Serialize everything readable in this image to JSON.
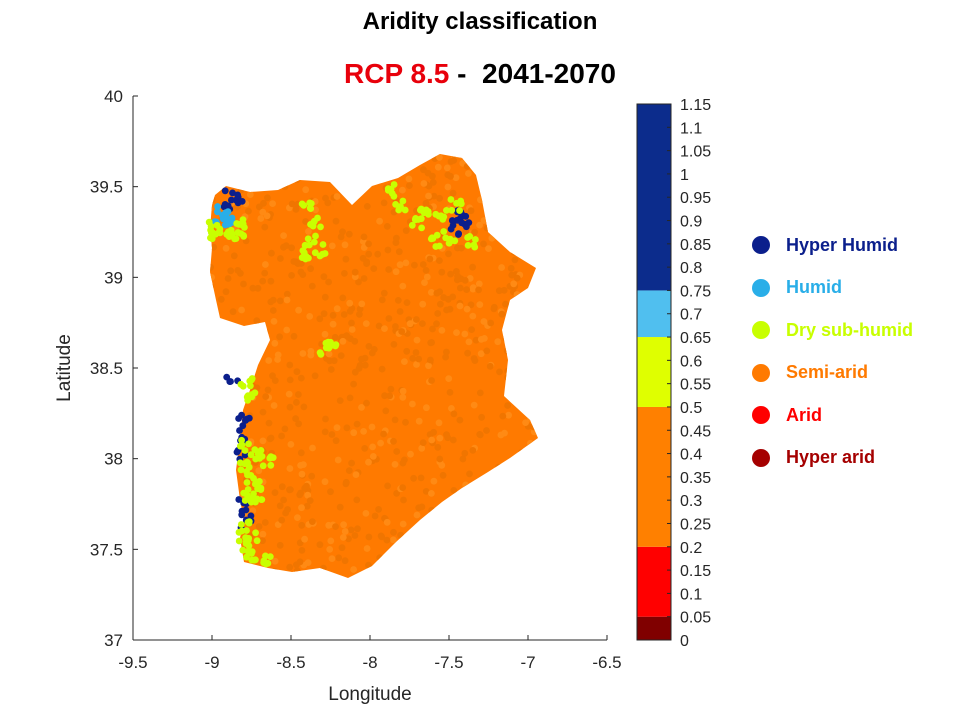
{
  "title": "Aridity classification",
  "subtitle": {
    "scenario": "RCP 8.5",
    "separator": " -  ",
    "period": "2041-2070",
    "scenario_color": "#e8000b",
    "period_color": "#000000"
  },
  "chart_data": {
    "type": "scatter",
    "title": "Aridity classification",
    "subtitle": "RCP 8.5 -  2041-2070",
    "xlabel": "Longitude",
    "ylabel": "Latitude",
    "xlim": [
      -9.5,
      -6.5
    ],
    "ylim": [
      37,
      40
    ],
    "xticks": [
      "-9.5",
      "-9",
      "-8.5",
      "-8",
      "-7.5",
      "-7",
      "-6.5"
    ],
    "yticks": [
      "37",
      "37.5",
      "38",
      "38.5",
      "39",
      "39.5",
      "40"
    ],
    "grid": false,
    "series": [
      {
        "name": "Hyper Humid",
        "color": "#0b1f8c",
        "points": [
          [
            -8.88,
            39.45
          ],
          [
            -8.84,
            39.44
          ],
          [
            -8.9,
            39.4
          ],
          [
            -7.45,
            39.33
          ],
          [
            -7.42,
            39.35
          ],
          [
            -7.4,
            39.3
          ],
          [
            -7.47,
            39.26
          ],
          [
            -8.87,
            38.45
          ],
          [
            -8.8,
            38.24
          ],
          [
            -8.79,
            38.18
          ],
          [
            -8.81,
            38.1
          ],
          [
            -8.8,
            37.75
          ],
          [
            -8.78,
            37.7
          ],
          [
            -8.79,
            37.64
          ],
          [
            -8.82,
            38.03
          ]
        ]
      },
      {
        "name": "Humid",
        "color": "#29aee8",
        "points": [
          [
            -8.93,
            39.37
          ],
          [
            -8.9,
            39.34
          ],
          [
            -8.95,
            39.33
          ],
          [
            -8.88,
            39.3
          ]
        ]
      },
      {
        "name": "Dry sub-humid",
        "color": "#c8ff00",
        "points": [
          [
            -8.98,
            39.28
          ],
          [
            -8.9,
            39.25
          ],
          [
            -8.82,
            39.3
          ],
          [
            -8.82,
            39.22
          ],
          [
            -8.98,
            39.22
          ],
          [
            -8.4,
            39.38
          ],
          [
            -8.35,
            39.3
          ],
          [
            -8.38,
            39.2
          ],
          [
            -8.32,
            39.15
          ],
          [
            -8.4,
            39.12
          ],
          [
            -7.85,
            39.48
          ],
          [
            -7.8,
            39.4
          ],
          [
            -7.65,
            39.38
          ],
          [
            -7.55,
            39.35
          ],
          [
            -7.5,
            39.22
          ],
          [
            -7.58,
            39.2
          ],
          [
            -7.45,
            39.4
          ],
          [
            -7.7,
            39.3
          ],
          [
            -7.35,
            39.2
          ],
          [
            -8.25,
            38.65
          ],
          [
            -8.28,
            38.6
          ],
          [
            -8.78,
            38.43
          ],
          [
            -8.75,
            38.35
          ],
          [
            -8.8,
            38.07
          ],
          [
            -8.72,
            38.02
          ],
          [
            -8.65,
            37.98
          ],
          [
            -8.8,
            37.95
          ],
          [
            -8.75,
            37.9
          ],
          [
            -8.72,
            37.85
          ],
          [
            -8.78,
            37.8
          ],
          [
            -8.72,
            37.78
          ],
          [
            -8.8,
            37.62
          ],
          [
            -8.75,
            37.58
          ],
          [
            -8.8,
            37.52
          ],
          [
            -8.75,
            37.46
          ],
          [
            -8.65,
            37.45
          ]
        ]
      },
      {
        "name": "Semi-arid",
        "color": "#ff7a00",
        "points": [
          [
            -8.9,
            39.15
          ],
          [
            -8.75,
            39.0
          ],
          [
            -8.65,
            38.85
          ],
          [
            -8.5,
            38.6
          ],
          [
            -8.6,
            38.3
          ],
          [
            -8.5,
            38.0
          ],
          [
            -8.45,
            37.7
          ],
          [
            -8.3,
            37.5
          ],
          [
            -8.1,
            37.38
          ],
          [
            -7.9,
            37.5
          ],
          [
            -7.7,
            37.7
          ],
          [
            -7.5,
            37.9
          ],
          [
            -7.25,
            38.1
          ],
          [
            -7.05,
            38.15
          ],
          [
            -7.2,
            38.5
          ],
          [
            -7.1,
            38.8
          ],
          [
            -7.0,
            39.0
          ],
          [
            -7.2,
            39.1
          ],
          [
            -7.4,
            39.2
          ],
          [
            -7.6,
            39.5
          ],
          [
            -7.8,
            39.6
          ],
          [
            -8.0,
            39.3
          ],
          [
            -8.2,
            39.1
          ],
          [
            -8.45,
            39.25
          ],
          [
            -8.6,
            39.4
          ],
          [
            -8.8,
            39.3
          ],
          [
            -8.7,
            39.1
          ],
          [
            -8.3,
            38.9
          ],
          [
            -8.0,
            38.7
          ],
          [
            -7.8,
            38.4
          ],
          [
            -7.6,
            38.2
          ],
          [
            -8.1,
            38.0
          ],
          [
            -8.2,
            37.8
          ],
          [
            -7.9,
            37.9
          ],
          [
            -7.6,
            38.6
          ],
          [
            -7.4,
            38.9
          ],
          [
            -7.7,
            39.0
          ],
          [
            -8.0,
            38.5
          ]
        ]
      },
      {
        "name": "Arid",
        "color": "#ff0000",
        "points": []
      },
      {
        "name": "Hyper arid",
        "color": "#a50000",
        "points": []
      }
    ],
    "colorbar": {
      "range": [
        0,
        1.15
      ],
      "ticks": [
        "0",
        "0.05",
        "0.1",
        "0.15",
        "0.2",
        "0.25",
        "0.3",
        "0.35",
        "0.4",
        "0.45",
        "0.5",
        "0.55",
        "0.6",
        "0.65",
        "0.7",
        "0.75",
        "0.8",
        "0.85",
        "0.9",
        "0.95",
        "1",
        "1.05",
        "1.1",
        "1.15"
      ],
      "bands": [
        {
          "from": 0,
          "to": 0.05,
          "color": "#800000"
        },
        {
          "from": 0.05,
          "to": 0.2,
          "color": "#ff0000"
        },
        {
          "from": 0.2,
          "to": 0.5,
          "color": "#ff8000"
        },
        {
          "from": 0.5,
          "to": 0.65,
          "color": "#dfff00"
        },
        {
          "from": 0.65,
          "to": 0.75,
          "color": "#50bfef"
        },
        {
          "from": 0.75,
          "to": 1.15,
          "color": "#0c2c8c"
        }
      ]
    },
    "legend_position": "right"
  },
  "legend": [
    {
      "label": "Hyper Humid",
      "color": "#0b1f8c"
    },
    {
      "label": "Humid",
      "color": "#29aee8"
    },
    {
      "label": "Dry sub-humid",
      "color": "#c8ff00"
    },
    {
      "label": "Semi-arid",
      "color": "#ff7a00"
    },
    {
      "label": "Arid",
      "color": "#ff0000"
    },
    {
      "label": "Hyper arid",
      "color": "#a50000"
    }
  ]
}
